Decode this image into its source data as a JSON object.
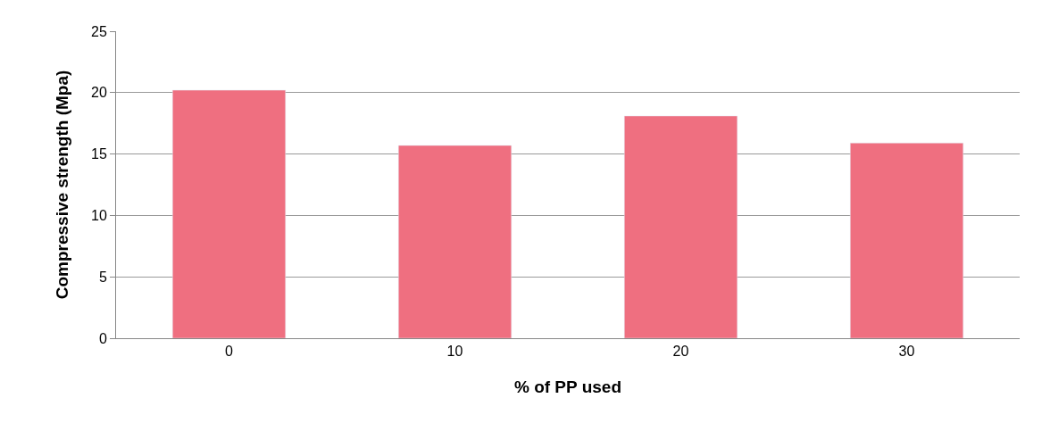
{
  "chart_data": {
    "type": "bar",
    "xlabel": "% of PP used",
    "ylabel": "Compressive strength (Mpa)",
    "categories": [
      "0",
      "10",
      "20",
      "30"
    ],
    "series": [
      {
        "color": "#ef6f80",
        "values": [
          20.2,
          15.7,
          18.1,
          15.9
        ]
      }
    ],
    "ylim": [
      0,
      25
    ],
    "yticks": [
      0,
      5,
      10,
      15,
      20,
      25
    ],
    "grid": "y"
  }
}
